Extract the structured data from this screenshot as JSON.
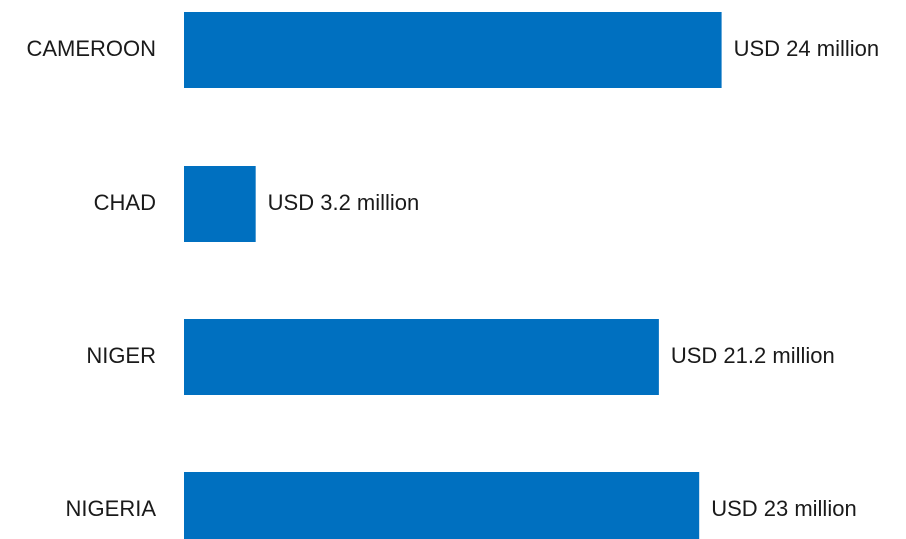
{
  "chart_data": {
    "type": "bar",
    "orientation": "horizontal",
    "categories": [
      "CAMEROON",
      "CHAD",
      "NIGER",
      "NIGERIA"
    ],
    "values": [
      24,
      3.2,
      21.2,
      23
    ],
    "value_labels": [
      "USD 24 million",
      "USD 3.2 million",
      "USD 21.2 million",
      "USD 23 million"
    ],
    "unit": "USD million",
    "bar_color": "#0070C0",
    "grid": false,
    "legend": "none",
    "title": "",
    "xlabel": "",
    "ylabel": ""
  }
}
